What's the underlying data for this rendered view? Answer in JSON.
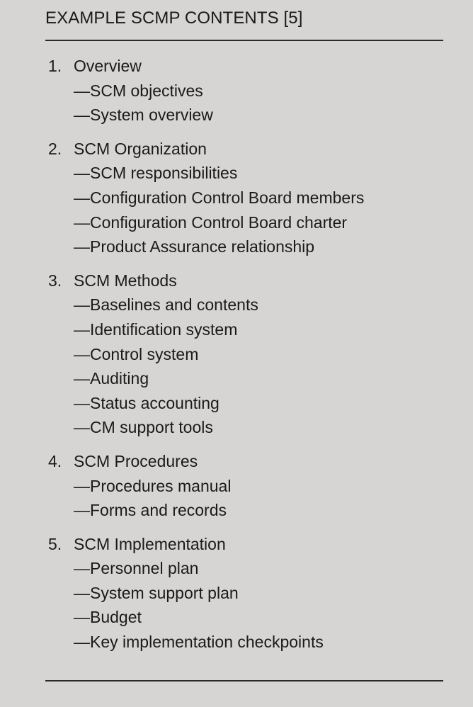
{
  "title": "EXAMPLE SCMP CONTENTS [5]",
  "sections": [
    {
      "number": "1.",
      "heading": "Overview",
      "items": [
        "—SCM objectives",
        "—System overview"
      ]
    },
    {
      "number": "2.",
      "heading": "SCM Organization",
      "items": [
        "—SCM responsibilities",
        "—Configuration Control Board members",
        "—Configuration Control Board charter",
        "—Product Assurance relationship"
      ]
    },
    {
      "number": "3.",
      "heading": "SCM Methods",
      "items": [
        "—Baselines and contents",
        "—Identification system",
        "—Control system",
        "—Auditing",
        "—Status accounting",
        "—CM support tools"
      ]
    },
    {
      "number": "4.",
      "heading": "SCM Procedures",
      "items": [
        "—Procedures manual",
        "—Forms and records"
      ]
    },
    {
      "number": "5.",
      "heading": "SCM Implementation",
      "items": [
        "—Personnel plan",
        "—System support plan",
        "—Budget",
        "—Key implementation checkpoints"
      ]
    }
  ]
}
